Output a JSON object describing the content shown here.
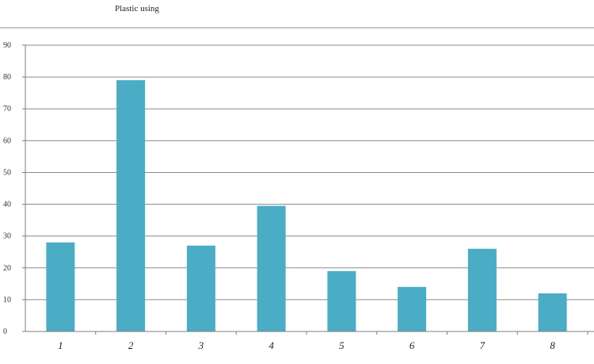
{
  "chart_data": {
    "type": "bar",
    "title": "Plastic using",
    "xlabel": "",
    "ylabel": "",
    "categories": [
      "1",
      "2",
      "3",
      "4",
      "5",
      "6",
      "7",
      "8"
    ],
    "values": [
      28,
      79,
      27,
      39.5,
      19,
      14,
      26,
      12
    ],
    "ylim": [
      0,
      90
    ],
    "y_ticks": [
      0,
      10,
      20,
      30,
      40,
      50,
      60,
      70,
      80,
      90
    ],
    "grid": true,
    "legend": "none",
    "bar_color": "#4bacc6",
    "grid_color": "#8c8c8c",
    "axis_color": "#7f7f7f"
  }
}
